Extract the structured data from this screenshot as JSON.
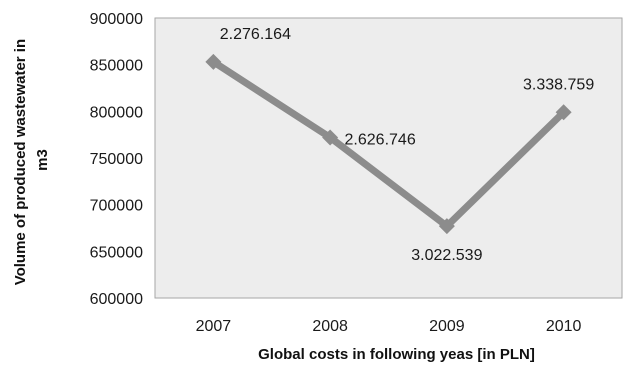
{
  "chart_data": {
    "type": "line",
    "categories": [
      "2007",
      "2008",
      "2009",
      "2010"
    ],
    "series": [
      {
        "values": [
          853000,
          772000,
          677000,
          799000
        ],
        "data_labels": [
          "2.276.164",
          "2.626.746",
          "3.022.539",
          "3.338.759"
        ]
      }
    ],
    "xlabel": "Global costs in following yeas [in PLN]",
    "ylabel_lines": [
      "Volume of produced wastewater in",
      "m3"
    ],
    "ylim": [
      600000,
      900000
    ],
    "yticks": [
      600000,
      650000,
      700000,
      750000,
      800000,
      850000,
      900000
    ],
    "ytick_labels": [
      "600000",
      "650000",
      "700000",
      "750000",
      "800000",
      "850000",
      "900000"
    ],
    "grid": false,
    "legend": "none",
    "colors": {
      "plot_bg": "#ededed",
      "line": "#8c8c8c",
      "axis": "#a6a6a6"
    }
  }
}
